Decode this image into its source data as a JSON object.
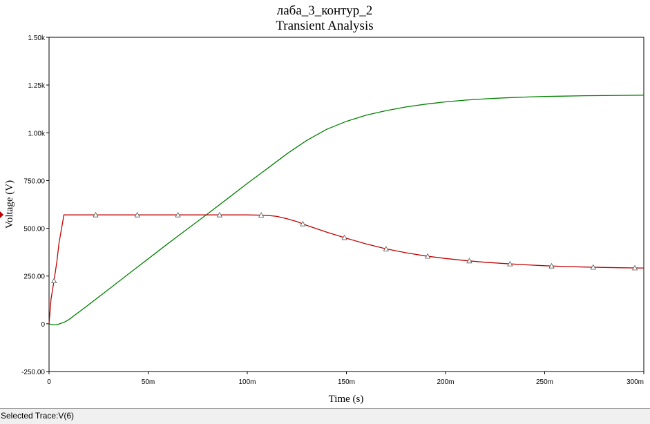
{
  "chart_data": {
    "type": "line",
    "title": "лаба_3_контур_2",
    "subtitle": "Transient Analysis",
    "xlabel": "Time (s)",
    "ylabel": "Voltage (V)",
    "xlim": [
      0,
      0.3
    ],
    "ylim": [
      -250,
      1500
    ],
    "x_ticks": [
      {
        "value": 0,
        "label": "0"
      },
      {
        "value": 0.05,
        "label": "50m"
      },
      {
        "value": 0.1,
        "label": "100m"
      },
      {
        "value": 0.15,
        "label": "150m"
      },
      {
        "value": 0.2,
        "label": "200m"
      },
      {
        "value": 0.25,
        "label": "250m"
      },
      {
        "value": 0.3,
        "label": "300m"
      }
    ],
    "y_ticks": [
      {
        "value": -250,
        "label": "-250.00"
      },
      {
        "value": 0,
        "label": "0"
      },
      {
        "value": 250,
        "label": "250.00"
      },
      {
        "value": 500,
        "label": "500.00"
      },
      {
        "value": 750,
        "label": "750.00"
      },
      {
        "value": 1000,
        "label": "1.00k"
      },
      {
        "value": 1250,
        "label": "1.25k"
      },
      {
        "value": 1500,
        "label": "1.50k"
      }
    ],
    "grid": false,
    "series": [
      {
        "color": "#008000",
        "marker": "none",
        "x": [
          0,
          0.002,
          0.004,
          0.006,
          0.008,
          0.01,
          0.02,
          0.03,
          0.04,
          0.05,
          0.06,
          0.07,
          0.08,
          0.09,
          0.1,
          0.11,
          0.12,
          0.13,
          0.14,
          0.15,
          0.16,
          0.17,
          0.18,
          0.19,
          0.2,
          0.21,
          0.22,
          0.23,
          0.24,
          0.25,
          0.26,
          0.27,
          0.28,
          0.29,
          0.3
        ],
        "y": [
          0,
          -6,
          -5,
          2,
          10,
          22,
          100,
          180,
          260,
          340,
          420,
          498,
          576,
          655,
          735,
          812,
          890,
          960,
          1018,
          1060,
          1092,
          1116,
          1135,
          1150,
          1162,
          1171,
          1178,
          1183,
          1187,
          1190,
          1192,
          1194,
          1195,
          1196,
          1197
        ]
      },
      {
        "color": "#c00000",
        "marker": "triangle",
        "marker_x": [
          0.0025,
          0.0235,
          0.0445,
          0.065,
          0.086,
          0.107,
          0.128,
          0.149,
          0.17,
          0.191,
          0.212,
          0.2325,
          0.2535,
          0.2745,
          0.2955
        ],
        "x": [
          0,
          0.001,
          0.0025,
          0.004,
          0.005,
          0.006,
          0.007,
          0.0075,
          0.01,
          0.05,
          0.1,
          0.11,
          0.115,
          0.12,
          0.125,
          0.13,
          0.14,
          0.15,
          0.16,
          0.17,
          0.18,
          0.19,
          0.2,
          0.21,
          0.22,
          0.23,
          0.24,
          0.25,
          0.26,
          0.27,
          0.28,
          0.29,
          0.3
        ],
        "y": [
          0,
          130,
          225,
          330,
          420,
          480,
          540,
          570,
          570,
          570,
          570,
          568,
          562,
          550,
          535,
          515,
          480,
          448,
          418,
          392,
          372,
          355,
          342,
          331,
          322,
          315,
          309,
          304,
          300,
          297,
          295,
          293,
          292
        ]
      }
    ]
  },
  "status": {
    "selected_trace": "Selected Trace:V(6)"
  }
}
